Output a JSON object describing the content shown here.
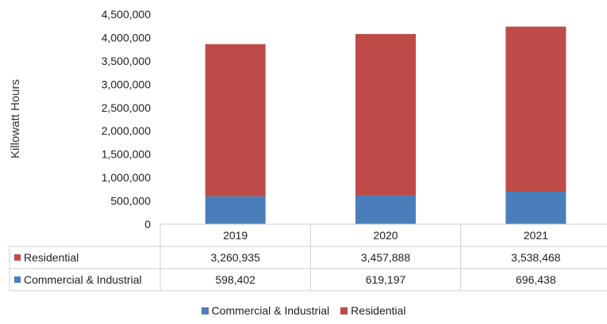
{
  "chart_data": {
    "type": "bar",
    "stacked": true,
    "categories": [
      "2019",
      "2020",
      "2021"
    ],
    "series": [
      {
        "name": "Commercial & Industrial",
        "color": "#4a7ebb",
        "values": [
          598402,
          619197,
          696438
        ],
        "labels": [
          "598,402",
          "619,197",
          "696,438"
        ]
      },
      {
        "name": "Residential",
        "color": "#be4b48",
        "values": [
          3260935,
          3457888,
          3538468
        ],
        "labels": [
          "3,260,935",
          "3,457,888",
          "3,538,468"
        ]
      }
    ],
    "table_rows": [
      "Residential",
      "Commercial & Industrial"
    ],
    "ylabel": "Killowatt Hours",
    "ylim": [
      0,
      4500000
    ],
    "yticks": [
      {
        "value": 0,
        "label": "0"
      },
      {
        "value": 500000,
        "label": "500,000"
      },
      {
        "value": 1000000,
        "label": "1,000,000"
      },
      {
        "value": 1500000,
        "label": "1,500,000"
      },
      {
        "value": 2000000,
        "label": "2,000,000"
      },
      {
        "value": 2500000,
        "label": "2,500,000"
      },
      {
        "value": 3000000,
        "label": "3,000,000"
      },
      {
        "value": 3500000,
        "label": "3,500,000"
      },
      {
        "value": 4000000,
        "label": "4,000,000"
      },
      {
        "value": 4500000,
        "label": "4,500,000"
      }
    ],
    "grid": false,
    "legend_position": "bottom"
  }
}
